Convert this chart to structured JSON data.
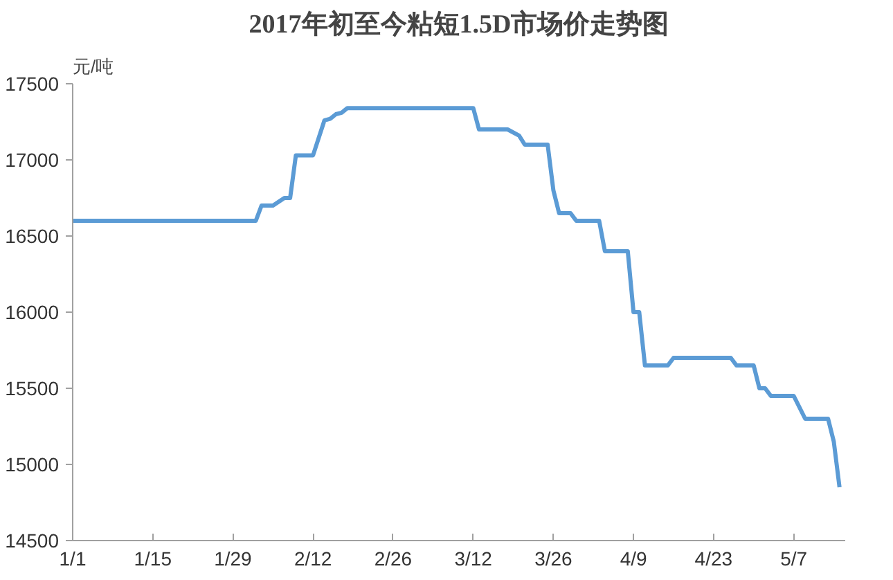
{
  "chart_data": {
    "type": "line",
    "title": "2017年初至今粘短1.5D市场价走势图",
    "ylabel": "元/吨",
    "x": [
      "2017-01-01",
      "2017-02-02",
      "2017-02-03",
      "2017-02-05",
      "2017-02-07",
      "2017-02-08",
      "2017-02-09",
      "2017-02-12",
      "2017-02-14",
      "2017-02-15",
      "2017-02-16",
      "2017-02-17",
      "2017-02-18",
      "2017-03-12",
      "2017-03-13",
      "2017-03-18",
      "2017-03-20",
      "2017-03-21",
      "2017-03-25",
      "2017-03-26",
      "2017-03-27",
      "2017-03-29",
      "2017-03-30",
      "2017-04-03",
      "2017-04-04",
      "2017-04-08",
      "2017-04-09",
      "2017-04-10",
      "2017-04-11",
      "2017-04-15",
      "2017-04-16",
      "2017-04-26",
      "2017-04-27",
      "2017-04-30",
      "2017-05-01",
      "2017-05-02",
      "2017-05-03",
      "2017-05-07",
      "2017-05-09",
      "2017-05-13",
      "2017-05-14",
      "2017-05-15"
    ],
    "series": [
      {
        "color": "#5b9bd5",
        "values": [
          16600,
          16600,
          16700,
          16700,
          16750,
          16750,
          17030,
          17030,
          17260,
          17270,
          17300,
          17310,
          17340,
          17340,
          17200,
          17200,
          17160,
          17100,
          17100,
          16800,
          16650,
          16650,
          16600,
          16600,
          16400,
          16400,
          16000,
          16000,
          15650,
          15650,
          15700,
          15700,
          15650,
          15650,
          15500,
          15500,
          15450,
          15450,
          15300,
          15300,
          15150,
          14850
        ]
      }
    ],
    "xlim": [
      "2017-01-01",
      "2017-05-16"
    ],
    "xticks": [
      {
        "value": "2017-01-01",
        "label": "1/1"
      },
      {
        "value": "2017-01-15",
        "label": "1/15"
      },
      {
        "value": "2017-01-29",
        "label": "1/29"
      },
      {
        "value": "2017-02-12",
        "label": "2/12"
      },
      {
        "value": "2017-02-26",
        "label": "2/26"
      },
      {
        "value": "2017-03-12",
        "label": "3/12"
      },
      {
        "value": "2017-03-26",
        "label": "3/26"
      },
      {
        "value": "2017-04-09",
        "label": "4/9"
      },
      {
        "value": "2017-04-23",
        "label": "4/23"
      },
      {
        "value": "2017-05-07",
        "label": "5/7"
      }
    ],
    "ylim": [
      14500,
      17500
    ],
    "yticks": [
      14500,
      15000,
      15500,
      16000,
      16500,
      17000,
      17500
    ],
    "grid": false,
    "marker": "none",
    "line_style": "solid"
  }
}
